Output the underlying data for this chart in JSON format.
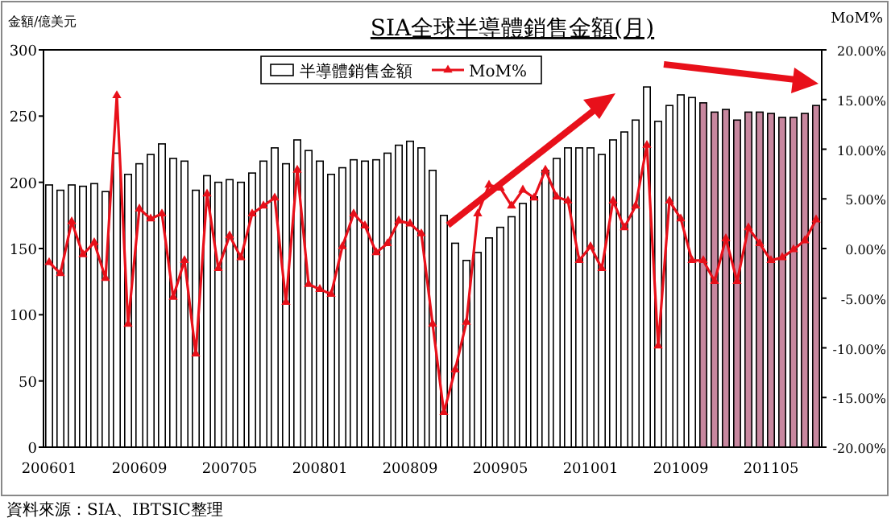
{
  "chart_data": {
    "type": "bar",
    "title": "SIA全球半導體銷售金額(月)",
    "ylabel": "金額/億美元",
    "y2label": "MoM%",
    "categories": [
      "200601",
      null,
      null,
      null,
      null,
      null,
      null,
      null,
      "200609",
      null,
      null,
      null,
      null,
      null,
      null,
      null,
      "200705",
      null,
      null,
      null,
      null,
      null,
      null,
      null,
      "200801",
      null,
      null,
      null,
      null,
      null,
      null,
      null,
      "200809",
      null,
      null,
      null,
      null,
      null,
      null,
      null,
      "200905",
      null,
      null,
      null,
      null,
      null,
      null,
      null,
      "201001",
      null,
      null,
      null,
      null,
      null,
      null,
      null,
      "201009",
      null,
      null,
      null,
      null,
      null,
      null,
      null,
      "201105",
      null,
      null,
      null,
      null
    ],
    "series": [
      {
        "name": "半導體銷售金額",
        "color": "#ffffff",
        "colors": [
          "#ffffff",
          "#ffffff",
          "#ffffff",
          "#ffffff",
          "#ffffff",
          "#ffffff",
          "#ffffff",
          "#ffffff",
          "#ffffff",
          "#ffffff",
          "#ffffff",
          "#ffffff",
          "#ffffff",
          "#ffffff",
          "#ffffff",
          "#ffffff",
          "#ffffff",
          "#ffffff",
          "#ffffff",
          "#ffffff",
          "#ffffff",
          "#ffffff",
          "#ffffff",
          "#ffffff",
          "#ffffff",
          "#ffffff",
          "#ffffff",
          "#ffffff",
          "#ffffff",
          "#ffffff",
          "#ffffff",
          "#ffffff",
          "#ffffff",
          "#ffffff",
          "#ffffff",
          "#ffffff",
          "#ffffff",
          "#ffffff",
          "#ffffff",
          "#ffffff",
          "#ffffff",
          "#ffffff",
          "#ffffff",
          "#ffffff",
          "#ffffff",
          "#ffffff",
          "#ffffff",
          "#ffffff",
          "#ffffff",
          "#ffffff",
          "#ffffff",
          "#ffffff",
          "#ffffff",
          "#ffffff",
          "#ffffff",
          "#ffffff",
          "#ffffff",
          "#ffffff",
          "#c8879f",
          "#c8879f",
          "#c8879f",
          "#c8879f",
          "#c8879f",
          "#c8879f",
          "#c8879f",
          "#c8879f",
          "#c8879f",
          "#c8879f",
          "#c8879f"
        ],
        "values": [
          198,
          194,
          198,
          197,
          199,
          193,
          222,
          206,
          214,
          221,
          229,
          218,
          216,
          194,
          205,
          200,
          202,
          200,
          207,
          216,
          226,
          214,
          232,
          224,
          216,
          206,
          211,
          217,
          216,
          217,
          222,
          228,
          231,
          226,
          209,
          175,
          154,
          141,
          147,
          158,
          166,
          174,
          184,
          189,
          209,
          218,
          226,
          226,
          226,
          221,
          232,
          238,
          247,
          272,
          246,
          258,
          266,
          264,
          260,
          253,
          255,
          247,
          253,
          253,
          252,
          249,
          249,
          252,
          258
        ]
      },
      {
        "name": "MoM%",
        "type": "line",
        "axis": "y2",
        "color": "#e8101a",
        "marker": "triangle",
        "values": [
          -1.4,
          -2.5,
          2.7,
          -0.6,
          0.6,
          -3.0,
          15.4,
          -7.6,
          4.0,
          3.0,
          3.5,
          -4.9,
          -1.2,
          -10.6,
          5.5,
          -2.0,
          1.3,
          -0.9,
          3.5,
          4.3,
          5.1,
          -5.4,
          7.9,
          -3.6,
          -4.1,
          -4.6,
          0.2,
          3.5,
          2.3,
          -0.4,
          0.5,
          2.8,
          2.5,
          1.5,
          -7.6,
          -16.5,
          -12.2,
          -7.4,
          3.5,
          6.4,
          6.1,
          4.3,
          5.9,
          5.1,
          7.9,
          5.2,
          4.8,
          -1.2,
          0.2,
          -2.0,
          4.8,
          2.1,
          4.3,
          10.4,
          -9.8,
          4.8,
          3.0,
          -1.2,
          -1.2,
          -3.3,
          1.0,
          -3.3,
          2.1,
          0.5,
          -1.2,
          -0.9,
          -0.1,
          0.8,
          2.9
        ]
      }
    ],
    "ylim": [
      0,
      300
    ],
    "yticks": [
      0,
      50,
      100,
      150,
      200,
      250,
      300
    ],
    "y2lim": [
      -20,
      20
    ],
    "y2ticks": [
      {
        "value": -20,
        "label": "-20.00%"
      },
      {
        "value": -15,
        "label": "-15.00%"
      },
      {
        "value": -10,
        "label": "-10.00%"
      },
      {
        "value": -5,
        "label": "-5.00%"
      },
      {
        "value": 0,
        "label": "0.00%"
      },
      {
        "value": 5,
        "label": "5.00%"
      },
      {
        "value": 10,
        "label": "10.00%"
      },
      {
        "value": 15,
        "label": "15.00%"
      },
      {
        "value": 20,
        "label": "20.00%"
      }
    ],
    "legend": "top",
    "grid": false,
    "annotations": [
      "資料來源：SIA、IBTSIC整理"
    ]
  }
}
